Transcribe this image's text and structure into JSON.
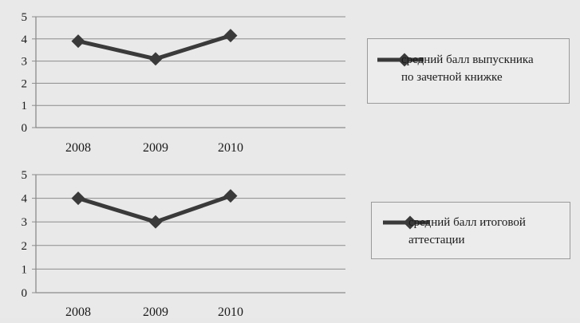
{
  "colors": {
    "series": "#3a3a3a",
    "grid": "#8c8c8c",
    "text": "#1a1a1a",
    "background": "#e9e9e9"
  },
  "chart_data": [
    {
      "type": "line",
      "categories": [
        "2008",
        "2009",
        "2010"
      ],
      "series": [
        {
          "name": "средний балл выпускника по зачетной книжке",
          "values": [
            3.9,
            3.1,
            4.15
          ]
        }
      ],
      "ylim": [
        0,
        5
      ],
      "yticks": [
        "0",
        "1",
        "2",
        "3",
        "4",
        "5"
      ],
      "grid": true,
      "legend_position": "right",
      "legend_lines": [
        "средний балл выпускника",
        "по зачетной книжке"
      ]
    },
    {
      "type": "line",
      "categories": [
        "2008",
        "2009",
        "2010"
      ],
      "series": [
        {
          "name": "средний балл итоговой аттестации",
          "values": [
            4.0,
            3.0,
            4.1
          ]
        }
      ],
      "ylim": [
        0,
        5
      ],
      "yticks": [
        "0",
        "1",
        "2",
        "3",
        "4",
        "5"
      ],
      "grid": true,
      "legend_position": "right",
      "legend_lines": [
        "средний балл итоговой",
        "аттестации"
      ]
    }
  ]
}
